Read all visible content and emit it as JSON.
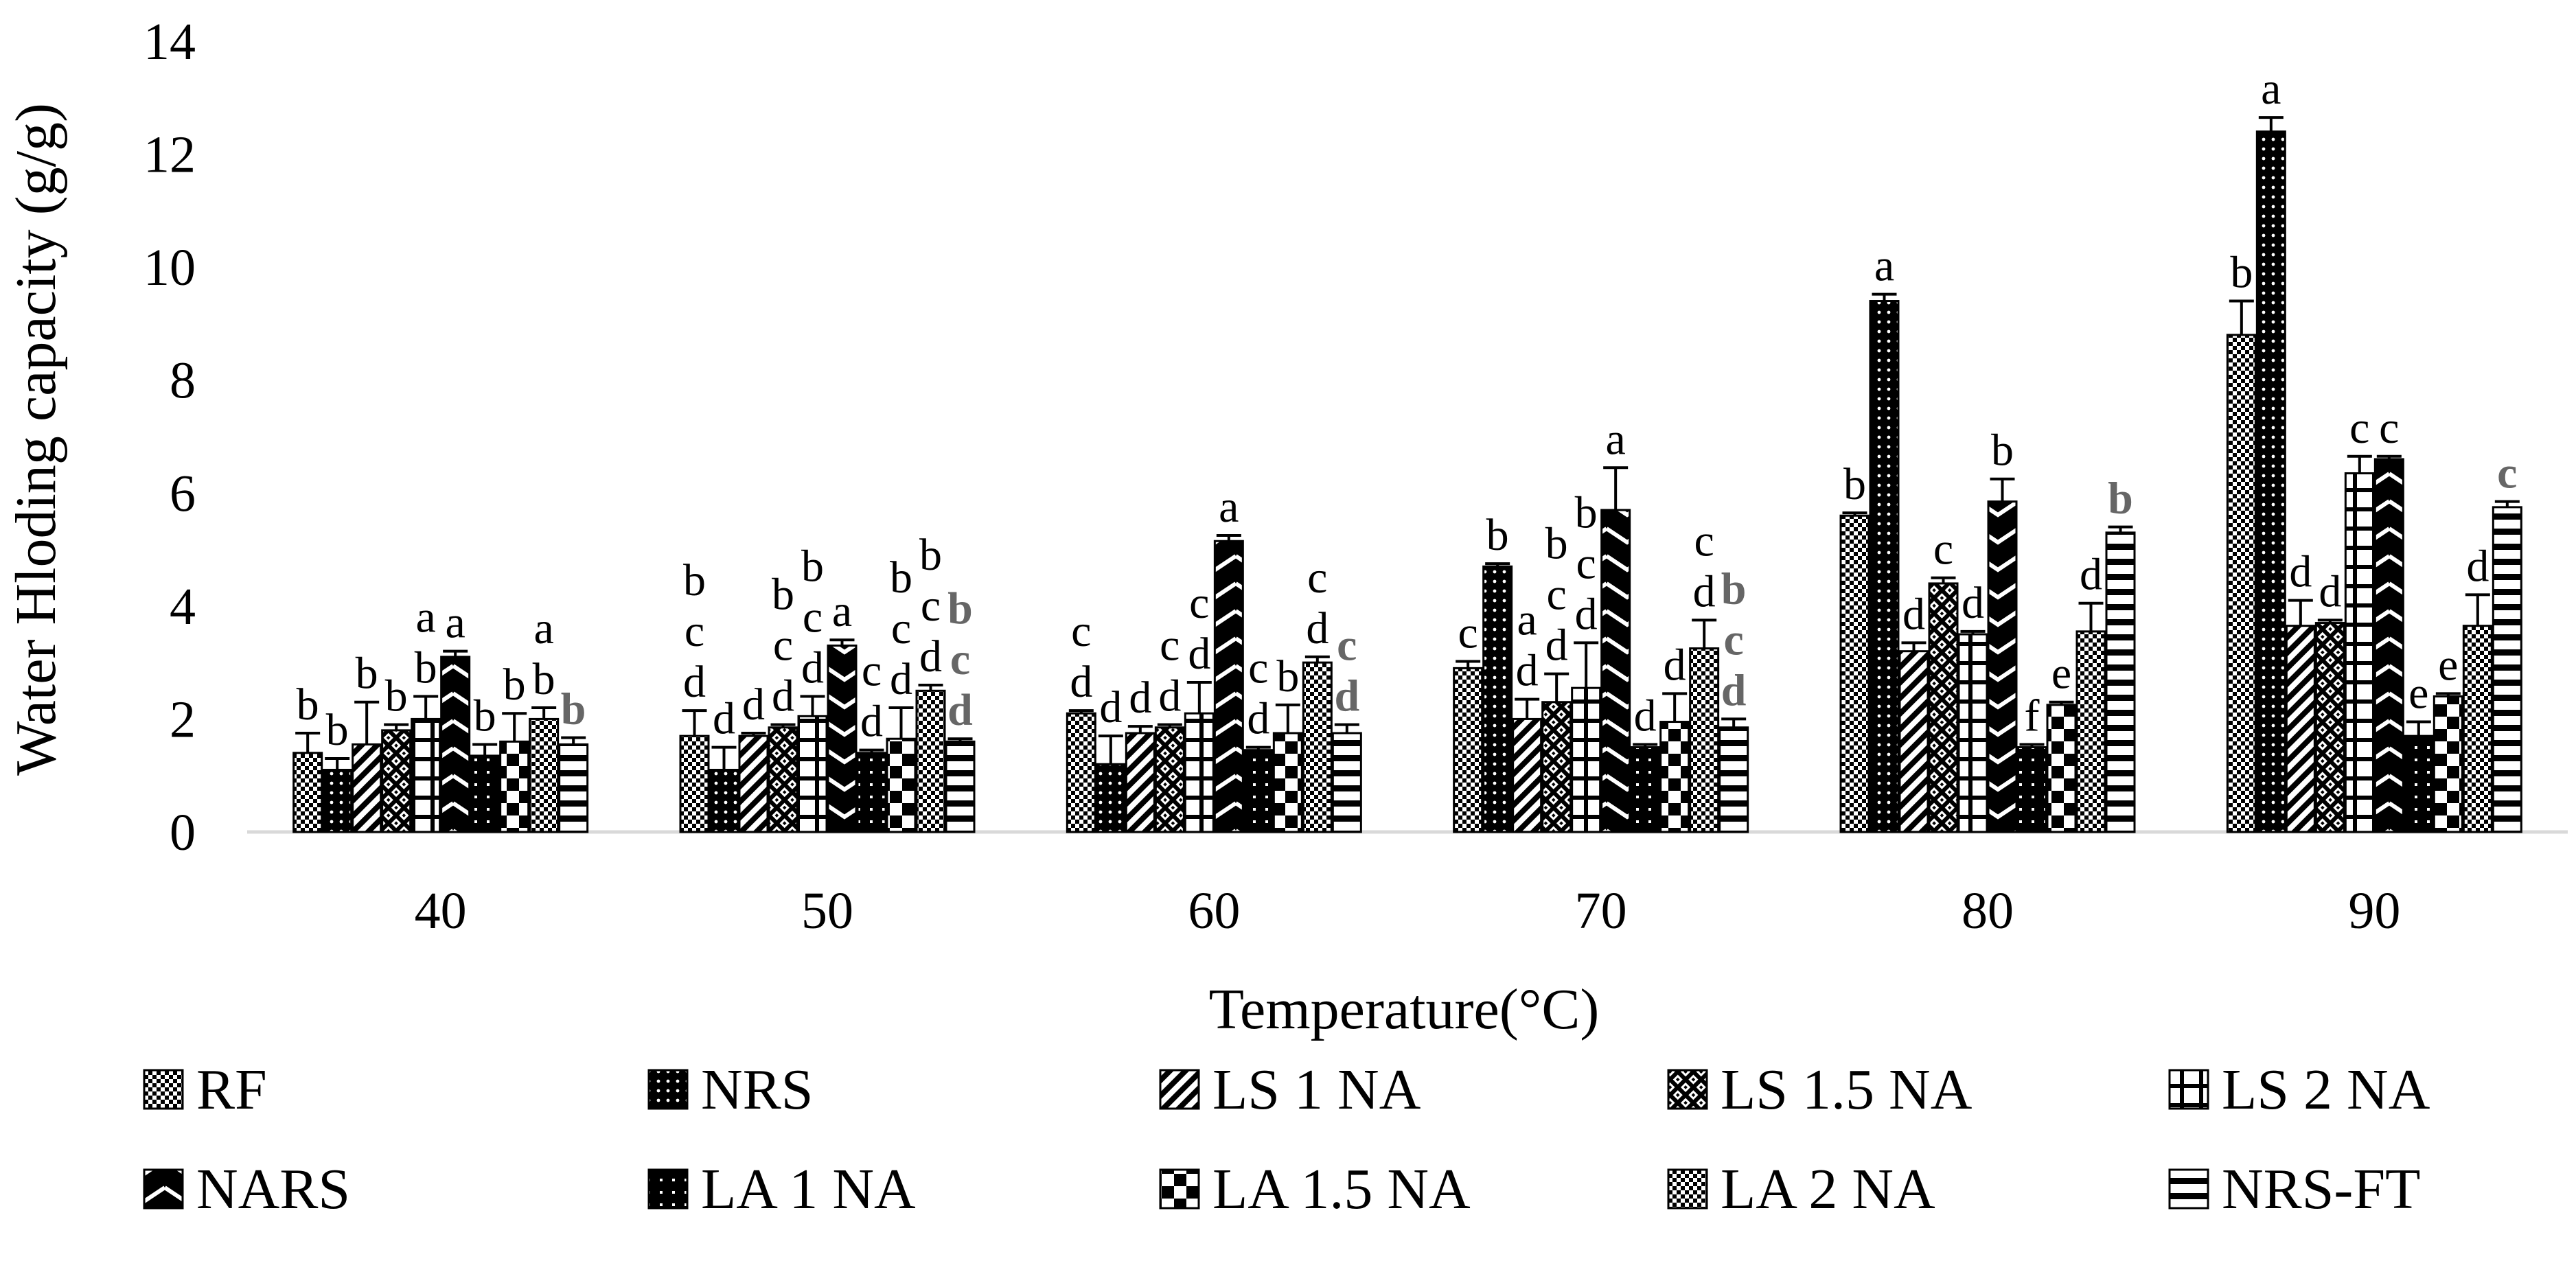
{
  "chart_data": {
    "type": "bar",
    "title": "",
    "xlabel": "Temperature(°C)",
    "ylabel": "Water Hloding capacity (g/g)",
    "ylim": [
      0,
      14
    ],
    "yticks": [
      0,
      2,
      4,
      6,
      8,
      10,
      12,
      14
    ],
    "grid": false,
    "legend_position": "bottom",
    "categories": [
      "40",
      "50",
      "60",
      "70",
      "80",
      "90"
    ],
    "series": [
      {
        "name": "RF",
        "pattern": "checker",
        "values": [
          1.4,
          1.7,
          2.1,
          2.9,
          5.6,
          8.8
        ],
        "errors": [
          0.35,
          0.45,
          0.05,
          0.12,
          0.05,
          0.6
        ],
        "letters": [
          [
            "b"
          ],
          [
            "b",
            "c",
            "d"
          ],
          [
            "c",
            "d"
          ],
          [
            "c"
          ],
          [
            "b"
          ],
          [
            "b"
          ]
        ]
      },
      {
        "name": "NRS",
        "pattern": "dots",
        "values": [
          1.1,
          1.1,
          1.2,
          4.7,
          9.4,
          12.4
        ],
        "errors": [
          0.2,
          0.4,
          0.5,
          0.05,
          0.12,
          0.25
        ],
        "letters": [
          [
            "b"
          ],
          [
            "d"
          ],
          [
            "d"
          ],
          [
            "b"
          ],
          [
            "a"
          ],
          [
            "a"
          ]
        ]
      },
      {
        "name": "LS 1 NA",
        "pattern": "diag",
        "values": [
          1.55,
          1.7,
          1.75,
          2.0,
          3.2,
          3.65
        ],
        "errors": [
          0.75,
          0.05,
          0.12,
          0.35,
          0.15,
          0.45
        ],
        "letters": [
          [
            "b"
          ],
          [
            "d"
          ],
          [
            "d"
          ],
          [
            "a",
            "d"
          ],
          [
            "d"
          ],
          [
            "d"
          ]
        ]
      },
      {
        "name": "LS 1.5 NA",
        "pattern": "crosshatch",
        "values": [
          1.8,
          1.85,
          1.85,
          2.3,
          4.4,
          3.7
        ],
        "errors": [
          0.1,
          0.05,
          0.05,
          0.5,
          0.1,
          0.05
        ],
        "letters": [
          [
            "b"
          ],
          [
            "b",
            "c",
            "d"
          ],
          [
            "c",
            "d"
          ],
          [
            "b",
            "c",
            "d"
          ],
          [
            "c"
          ],
          [
            "d"
          ]
        ]
      },
      {
        "name": "LS 2 NA",
        "pattern": "grid",
        "values": [
          2.0,
          2.05,
          2.1,
          2.55,
          3.5,
          6.35
        ],
        "errors": [
          0.4,
          0.35,
          0.55,
          0.8,
          0.05,
          0.3
        ],
        "letters": [
          [
            "a",
            "b"
          ],
          [
            "b",
            "c",
            "d"
          ],
          [
            "c",
            "d"
          ],
          [
            "b",
            "c",
            "d"
          ],
          [
            "d"
          ],
          [
            "c"
          ]
        ]
      },
      {
        "name": "NARS",
        "pattern": "zigzag",
        "values": [
          3.1,
          3.3,
          5.15,
          5.7,
          5.85,
          6.6
        ],
        "errors": [
          0.1,
          0.1,
          0.1,
          0.75,
          0.4,
          0.05
        ],
        "letters": [
          [
            "a"
          ],
          [
            "a"
          ],
          [
            "a"
          ],
          [
            "a"
          ],
          [
            "b"
          ],
          [
            "c"
          ]
        ]
      },
      {
        "name": "LA 1 NA",
        "pattern": "dots-dense",
        "values": [
          1.35,
          1.4,
          1.45,
          1.5,
          1.5,
          1.7
        ],
        "errors": [
          0.2,
          0.05,
          0.05,
          0.05,
          0.05,
          0.25
        ],
        "letters": [
          [
            "b"
          ],
          [
            "c",
            "d"
          ],
          [
            "c",
            "d"
          ],
          [
            "d"
          ],
          [
            "f"
          ],
          [
            "e"
          ]
        ]
      },
      {
        "name": "LA 1.5 NA",
        "pattern": "bigchecker",
        "values": [
          1.6,
          1.65,
          1.75,
          1.95,
          2.25,
          2.4
        ],
        "errors": [
          0.5,
          0.55,
          0.5,
          0.5,
          0.05,
          0.05
        ],
        "letters": [
          [
            "b"
          ],
          [
            "b",
            "c",
            "d"
          ],
          [
            "b"
          ],
          [
            "d"
          ],
          [
            "e"
          ],
          [
            "e"
          ]
        ]
      },
      {
        "name": "LA 2 NA",
        "pattern": "checker",
        "values": [
          2.0,
          2.5,
          3.0,
          3.25,
          3.55,
          3.65
        ],
        "errors": [
          0.2,
          0.1,
          0.1,
          0.5,
          0.5,
          0.55
        ],
        "letters": [
          [
            "a",
            "b"
          ],
          [
            "b",
            "c",
            "d"
          ],
          [
            "c",
            "d"
          ],
          [
            "c",
            "d"
          ],
          [
            "d"
          ],
          [
            "d"
          ]
        ]
      },
      {
        "name": "NRS-FT",
        "pattern": "hlines",
        "values": [
          1.55,
          1.6,
          1.75,
          1.85,
          5.3,
          5.75
        ],
        "errors": [
          0.12,
          0.05,
          0.15,
          0.15,
          0.1,
          0.1
        ],
        "letters_gray": true,
        "letters": [
          [
            "b"
          ],
          [
            "b",
            "c",
            "d"
          ],
          [
            "c",
            "d"
          ],
          [
            "b",
            "c",
            "d"
          ],
          [
            "b"
          ],
          [
            "c"
          ]
        ]
      }
    ]
  },
  "colors": {
    "bar_fill": "#000000",
    "pattern_light": "#ffffff",
    "axis": "#d9d9d9",
    "gray_letter": "#666666"
  }
}
